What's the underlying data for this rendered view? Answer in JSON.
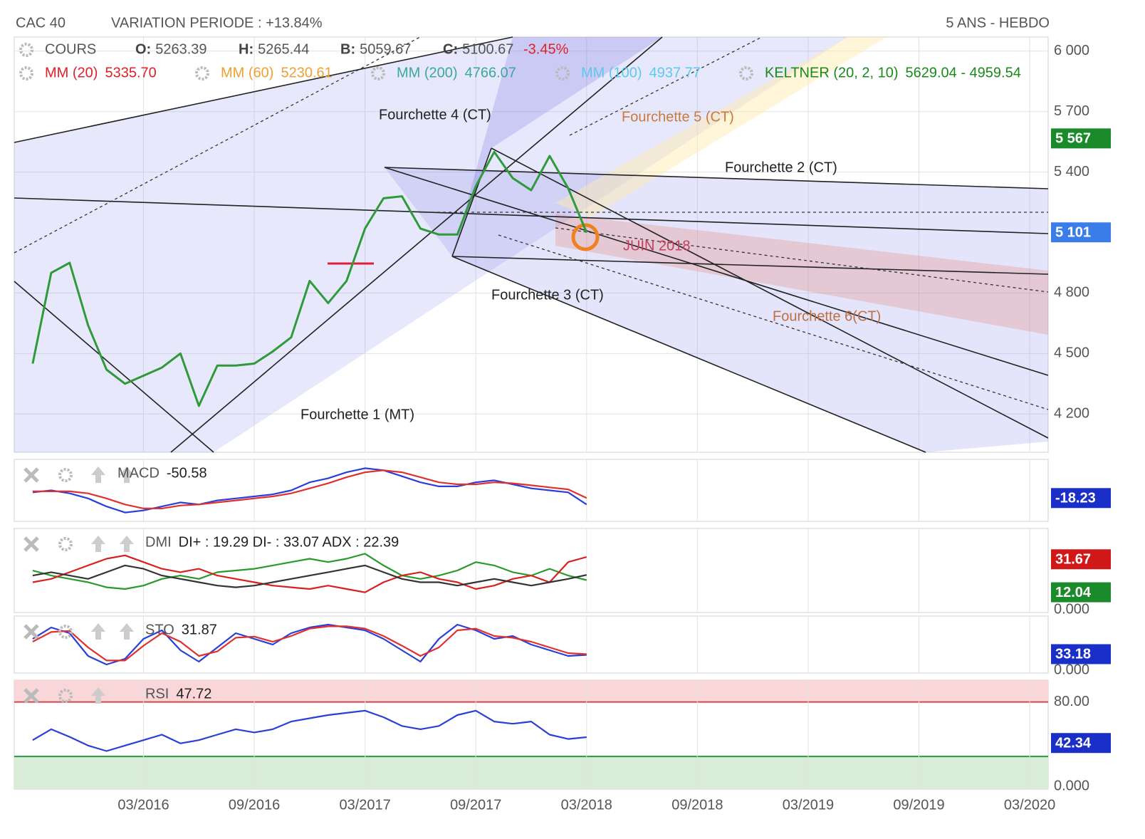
{
  "header": {
    "title": "CAC 40",
    "variation": "VARIATION PERIODE : +13.84%",
    "period": "5 ANS - HEBDO"
  },
  "chart_data": [
    {
      "type": "line",
      "x": [
        "09/2015",
        "10/2015",
        "11/2015",
        "12/2015",
        "01/2016",
        "02/2016",
        "03/2016",
        "04/2016",
        "05/2016",
        "06/2016",
        "07/2016",
        "08/2016",
        "09/2016",
        "10/2016",
        "11/2016",
        "12/2016",
        "01/2017",
        "02/2017",
        "03/2017",
        "04/2017",
        "05/2017",
        "06/2017",
        "07/2017",
        "08/2017",
        "09/2017",
        "10/2017",
        "11/2017",
        "12/2017",
        "01/2018",
        "02/2018",
        "03/2018"
      ],
      "series": [
        {
          "name": "COURS",
          "color": "#2e9a3a",
          "values": [
            4450,
            4900,
            4950,
            4640,
            4420,
            4350,
            4390,
            4430,
            4500,
            4240,
            4440,
            4440,
            4450,
            4510,
            4580,
            4860,
            4750,
            4860,
            5120,
            5270,
            5280,
            5120,
            5090,
            5090,
            5330,
            5500,
            5370,
            5310,
            5480,
            5320,
            5100
          ]
        }
      ],
      "quote": [
        {
          "key": "O:",
          "value": "5263.39"
        },
        {
          "key": "H:",
          "value": "5265.44"
        },
        {
          "key": "B:",
          "value": "5059.67"
        },
        {
          "key": "C:",
          "value": "5100.67"
        }
      ],
      "change": "-3.45%",
      "overlays": [
        {
          "name": "MM (20)",
          "value": "5335.70",
          "color": "#e0202a"
        },
        {
          "name": "MM (60)",
          "value": "5230.61",
          "color": "#f0a030"
        },
        {
          "name": "MM (200)",
          "value": "4766.07",
          "color": "#3aa8a0"
        },
        {
          "name": "MM (100)",
          "value": "4937.77",
          "color": "#5cc8f0"
        },
        {
          "name": "KELTNER (20, 2, 10)",
          "value": "5629.04 - 4959.54",
          "color": "#1a8a1a"
        }
      ],
      "annotations": [
        {
          "text": "Fourchette 4 (CT)",
          "color": "#222222"
        },
        {
          "text": "Fourchette 5 (CT)",
          "color": "#c87a3a"
        },
        {
          "text": "Fourchette 2 (CT)",
          "color": "#222222"
        },
        {
          "text": "Fourchette 3 (CT)",
          "color": "#222222"
        },
        {
          "text": "Fourchette 6(CT)",
          "color": "#c07040"
        },
        {
          "text": "Fourchette 1 (MT)",
          "color": "#222222"
        },
        {
          "text": "JUIN 2018",
          "color": "#c04060"
        }
      ],
      "badges": [
        {
          "value": 5567,
          "label": "5 567",
          "color": "#1a8a2a"
        },
        {
          "value": 5101,
          "label": "5 101",
          "color": "#3a7de8"
        }
      ],
      "xlim": [
        "08/2015",
        "04/2020"
      ],
      "xticks": [
        "03/2016",
        "09/2016",
        "03/2017",
        "09/2017",
        "03/2018",
        "09/2018",
        "03/2019",
        "09/2019",
        "03/2020"
      ],
      "ylim": [
        4010,
        6070
      ],
      "yticks": [
        {
          "value": 4200,
          "label": "4 200"
        },
        {
          "value": 4500,
          "label": "4 500"
        },
        {
          "value": 4800,
          "label": "4 800"
        },
        {
          "value": 5400,
          "label": "5 400"
        },
        {
          "value": 5700,
          "label": "5 700"
        },
        {
          "value": 6000,
          "label": "6 000"
        }
      ],
      "grid": true
    },
    {
      "type": "line",
      "title": "MACD",
      "reading": "-50.58",
      "x": [
        "09/2015",
        "10/2015",
        "11/2015",
        "12/2015",
        "01/2016",
        "02/2016",
        "03/2016",
        "04/2016",
        "05/2016",
        "06/2016",
        "07/2016",
        "08/2016",
        "09/2016",
        "10/2016",
        "11/2016",
        "12/2016",
        "01/2017",
        "02/2017",
        "03/2017",
        "04/2017",
        "05/2017",
        "06/2017",
        "07/2017",
        "08/2017",
        "09/2017",
        "10/2017",
        "11/2017",
        "12/2017",
        "01/2018",
        "02/2018",
        "03/2018"
      ],
      "series": [
        {
          "color": "#2a3fd8",
          "values": [
            10,
            20,
            5,
            -20,
            -60,
            -90,
            -80,
            -60,
            -40,
            -50,
            -30,
            -20,
            -10,
            0,
            20,
            60,
            80,
            110,
            130,
            120,
            90,
            60,
            40,
            40,
            60,
            70,
            50,
            30,
            20,
            10,
            -50
          ]
        },
        {
          "color": "#e03030",
          "values": [
            15,
            15,
            15,
            5,
            -20,
            -50,
            -70,
            -70,
            -55,
            -50,
            -40,
            -30,
            -20,
            -10,
            5,
            30,
            55,
            85,
            110,
            120,
            110,
            85,
            60,
            50,
            50,
            60,
            55,
            45,
            35,
            25,
            -18
          ]
        }
      ],
      "badges": [
        {
          "value": -18.23,
          "color": "#1a2fc8"
        }
      ]
    },
    {
      "type": "line",
      "title": "DMI",
      "reading": "DI+ : 19.29 DI- : 33.07 ADX : 22.39",
      "x": [
        "09/2015",
        "10/2015",
        "11/2015",
        "12/2015",
        "01/2016",
        "02/2016",
        "03/2016",
        "04/2016",
        "05/2016",
        "06/2016",
        "07/2016",
        "08/2016",
        "09/2016",
        "10/2016",
        "11/2016",
        "12/2016",
        "01/2017",
        "02/2017",
        "03/2017",
        "04/2017",
        "05/2017",
        "06/2017",
        "07/2017",
        "08/2017",
        "09/2017",
        "10/2017",
        "11/2017",
        "12/2017",
        "01/2018",
        "02/2018",
        "03/2018"
      ],
      "series": [
        {
          "color": "#2a9a2a",
          "values": [
            25,
            22,
            20,
            18,
            15,
            14,
            16,
            20,
            22,
            20,
            24,
            25,
            26,
            28,
            30,
            32,
            30,
            32,
            35,
            28,
            22,
            20,
            22,
            25,
            30,
            28,
            24,
            22,
            26,
            22,
            19.29
          ]
        },
        {
          "color": "#d82020",
          "values": [
            18,
            20,
            24,
            28,
            32,
            34,
            30,
            26,
            24,
            26,
            22,
            20,
            18,
            16,
            15,
            14,
            16,
            14,
            12,
            18,
            22,
            24,
            20,
            18,
            14,
            16,
            20,
            22,
            18,
            30,
            33.07
          ]
        },
        {
          "color": "#333333",
          "values": [
            22,
            24,
            22,
            20,
            24,
            28,
            26,
            22,
            20,
            18,
            16,
            15,
            16,
            18,
            20,
            22,
            24,
            26,
            28,
            24,
            20,
            18,
            18,
            16,
            18,
            20,
            18,
            16,
            18,
            20,
            22.39
          ]
        }
      ],
      "ylim": [
        0,
        50
      ],
      "yticks": [
        {
          "value": 0,
          "label": "0.000"
        }
      ],
      "badges": [
        {
          "value": 31.67,
          "color": "#d01818"
        },
        {
          "value": 12.04,
          "color": "#1a8a2a"
        }
      ]
    },
    {
      "type": "line",
      "title": "STO",
      "reading": "31.87",
      "x": [
        "09/2015",
        "10/2015",
        "11/2015",
        "12/2015",
        "01/2016",
        "02/2016",
        "03/2016",
        "04/2016",
        "05/2016",
        "06/2016",
        "07/2016",
        "08/2016",
        "09/2016",
        "10/2016",
        "11/2016",
        "12/2016",
        "01/2017",
        "02/2017",
        "03/2017",
        "04/2017",
        "05/2017",
        "06/2017",
        "07/2017",
        "08/2017",
        "09/2017",
        "10/2017",
        "11/2017",
        "12/2017",
        "01/2018",
        "02/2018",
        "03/2018"
      ],
      "series": [
        {
          "color": "#2a3fd8",
          "values": [
            60,
            80,
            70,
            30,
            15,
            25,
            60,
            75,
            40,
            20,
            45,
            70,
            60,
            50,
            70,
            80,
            85,
            80,
            75,
            60,
            40,
            20,
            60,
            85,
            75,
            60,
            65,
            50,
            40,
            30,
            31.87
          ]
        },
        {
          "color": "#e03030",
          "values": [
            55,
            72,
            74,
            45,
            22,
            22,
            48,
            70,
            55,
            30,
            38,
            62,
            64,
            55,
            65,
            78,
            82,
            82,
            78,
            65,
            48,
            30,
            45,
            75,
            78,
            65,
            62,
            55,
            45,
            35,
            33.18
          ]
        }
      ],
      "ylim": [
        0,
        100
      ],
      "yticks": [
        {
          "value": 0,
          "label": "0.000"
        }
      ],
      "badges": [
        {
          "value": 33.18,
          "color": "#1a2fc8"
        }
      ]
    },
    {
      "type": "line",
      "title": "RSI",
      "reading": "47.72",
      "x": [
        "09/2015",
        "10/2015",
        "11/2015",
        "12/2015",
        "01/2016",
        "02/2016",
        "03/2016",
        "04/2016",
        "05/2016",
        "06/2016",
        "07/2016",
        "08/2016",
        "09/2016",
        "10/2016",
        "11/2016",
        "12/2016",
        "01/2017",
        "02/2017",
        "03/2017",
        "04/2017",
        "05/2017",
        "06/2017",
        "07/2017",
        "08/2017",
        "09/2017",
        "10/2017",
        "11/2017",
        "12/2017",
        "01/2018",
        "02/2018",
        "03/2018"
      ],
      "series": [
        {
          "color": "#2a3fd8",
          "values": [
            45,
            55,
            48,
            40,
            35,
            40,
            45,
            50,
            42,
            45,
            50,
            55,
            52,
            55,
            62,
            65,
            68,
            70,
            72,
            66,
            58,
            55,
            58,
            68,
            72,
            62,
            60,
            62,
            50,
            46,
            47.72
          ]
        }
      ],
      "zones": [
        {
          "from": 80,
          "to": 100,
          "color": "#f9d6d8",
          "line_color": "#d04848"
        },
        {
          "from": 0,
          "to": 30,
          "color": "#d8ecd8",
          "line_color": "#2a9a3a"
        }
      ],
      "ylim": [
        0,
        100
      ],
      "yticks": [
        {
          "value": 0,
          "label": "0.000"
        },
        {
          "value": 80,
          "label": "80.00"
        }
      ],
      "badges": [
        {
          "value": 42.34,
          "color": "#1a2fc8"
        }
      ]
    }
  ]
}
